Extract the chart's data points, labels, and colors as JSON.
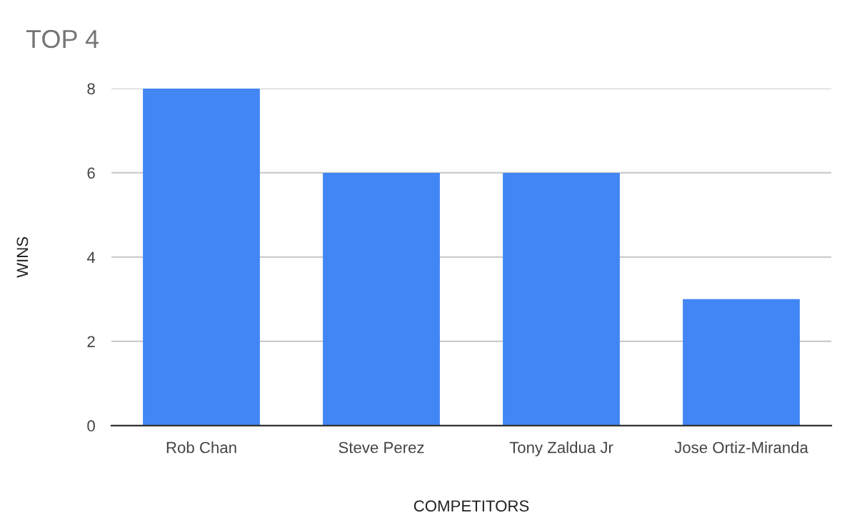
{
  "chart_data": {
    "type": "bar",
    "title": "TOP 4",
    "xlabel": "COMPETITORS",
    "ylabel": "WINS",
    "categories": [
      "Rob Chan",
      "Steve Perez",
      "Tony Zaldua Jr",
      "Jose Ortiz-Miranda"
    ],
    "values": [
      8,
      6,
      6,
      3
    ],
    "color": "#4285f4",
    "ylim": [
      0,
      8
    ],
    "yticks": [
      0,
      2,
      4,
      6,
      8
    ],
    "grid": "y",
    "legend": false
  }
}
